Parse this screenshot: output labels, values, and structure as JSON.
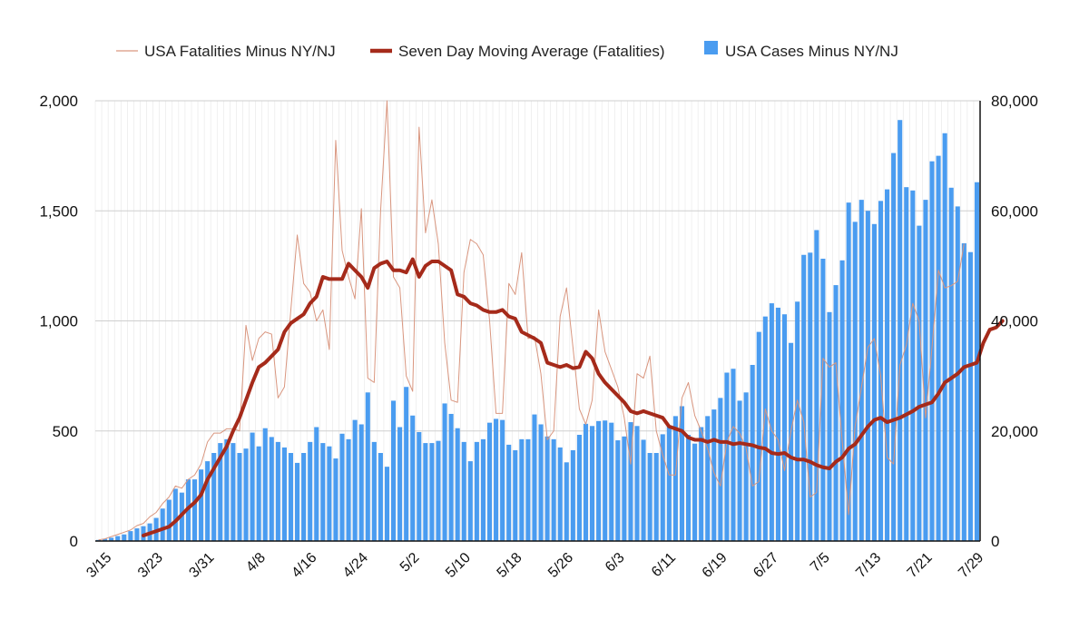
{
  "chart_data": {
    "type": "bar+line",
    "title": "",
    "start_date": "3/15",
    "end_date": "7/29",
    "x_tick_labels": [
      "3/15",
      "3/23",
      "3/31",
      "4/8",
      "4/16",
      "4/24",
      "5/2",
      "5/10",
      "5/18",
      "5/26",
      "6/3",
      "6/11",
      "6/19",
      "6/27",
      "7/5",
      "7/13",
      "7/21",
      "7/29"
    ],
    "x_tick_index": [
      0,
      8,
      16,
      24,
      32,
      40,
      48,
      56,
      64,
      72,
      80,
      88,
      96,
      104,
      112,
      120,
      128,
      136
    ],
    "y_left": {
      "ylim": [
        0,
        2000
      ],
      "ticks": [
        0,
        500,
        1000,
        1500,
        2000
      ],
      "tick_labels": [
        "0",
        "500",
        "1,000",
        "1,500",
        "2,000"
      ]
    },
    "y_right": {
      "ylim": [
        0,
        80000
      ],
      "ticks": [
        0,
        20000,
        40000,
        60000,
        80000
      ],
      "tick_labels": [
        "0",
        "20,000",
        "40,000",
        "60,000",
        "80,000"
      ]
    },
    "legend": [
      {
        "name": "USA Fatalities Minus NY/NJ",
        "color": "#d9967f",
        "kind": "thin-line"
      },
      {
        "name": "Seven Day Moving Average (Fatalities)",
        "color": "#a52a1a",
        "kind": "thick-line"
      },
      {
        "name": "USA Cases Minus NY/NJ",
        "color": "#4a9cf0",
        "kind": "bar"
      }
    ],
    "series": [
      {
        "name": "USA Cases Minus NY/NJ",
        "axis": "right",
        "values": [
          200,
          400,
          600,
          900,
          1200,
          1800,
          2300,
          2700,
          3200,
          4200,
          5900,
          7500,
          9500,
          8800,
          11200,
          11200,
          13000,
          14500,
          16000,
          17800,
          18500,
          17800,
          16000,
          16800,
          19700,
          17200,
          20500,
          18900,
          18000,
          17000,
          16000,
          14200,
          16000,
          18000,
          20700,
          17800,
          17200,
          15000,
          19500,
          18500,
          22000,
          21200,
          27000,
          18000,
          16000,
          13500,
          25500,
          20700,
          28000,
          22800,
          19800,
          17800,
          17800,
          18200,
          25000,
          23100,
          20500,
          18000,
          14500,
          18000,
          18500,
          21500,
          22200,
          22000,
          17500,
          16500,
          18500,
          18500,
          23000,
          21200,
          19000,
          18500,
          17000,
          14300,
          16500,
          19300,
          21300,
          20900,
          21800,
          21900,
          21500,
          18300,
          19000,
          21600,
          20900,
          18400,
          16000,
          16000,
          19400,
          21000,
          22700,
          24500,
          19300,
          17700,
          20700,
          22700,
          23900,
          26000,
          30600,
          31300,
          25500,
          27000,
          32000,
          38000,
          40800,
          43200,
          42400,
          41200,
          36000,
          43500,
          52000,
          52400,
          56500,
          51300,
          41600,
          46500,
          51000,
          61500,
          58000,
          62000,
          60000,
          57600,
          61800,
          63900,
          70500,
          76500,
          64300,
          63700,
          57300,
          62000,
          69000,
          70000,
          74100,
          64200,
          60800,
          54100,
          52500,
          65200
        ]
      },
      {
        "name": "USA Fatalities Minus NY/NJ",
        "axis": "left",
        "values": [
          5,
          10,
          20,
          30,
          40,
          50,
          70,
          80,
          110,
          130,
          170,
          200,
          250,
          240,
          280,
          300,
          350,
          450,
          490,
          490,
          510,
          510,
          500,
          980,
          820,
          920,
          950,
          940,
          650,
          700,
          1050,
          1390,
          1170,
          1130,
          1000,
          1050,
          870,
          1820,
          1320,
          1200,
          1100,
          1510,
          740,
          720,
          1500,
          2000,
          1200,
          1150,
          750,
          680,
          1880,
          1400,
          1550,
          1350,
          900,
          640,
          630,
          1220,
          1370,
          1350,
          1300,
          1000,
          580,
          580,
          1170,
          1120,
          1310,
          920,
          930,
          760,
          460,
          500,
          1020,
          1150,
          880,
          600,
          530,
          640,
          1050,
          860,
          780,
          700,
          560,
          350,
          760,
          740,
          840,
          500,
          390,
          300,
          300,
          650,
          720,
          570,
          500,
          420,
          310,
          250,
          450,
          520,
          490,
          420,
          250,
          270,
          600,
          500,
          460,
          320,
          500,
          640,
          540,
          200,
          220,
          830,
          790,
          810,
          450,
          120,
          520,
          700,
          880,
          920,
          750,
          380,
          350,
          800,
          890,
          1080,
          1000,
          560,
          880,
          1230,
          1150,
          1160,
          1180,
          1350
        ]
      },
      {
        "name": "Seven Day Moving Average (Fatalities)",
        "axis": "left",
        "values": null,
        "start_index": 7,
        "values_from_start": [
          25,
          35,
          45,
          55,
          65,
          90,
          120,
          150,
          175,
          210,
          280,
          330,
          380,
          430,
          500,
          560,
          640,
          720,
          790,
          810,
          840,
          870,
          950,
          990,
          1010,
          1030,
          1080,
          1110,
          1200,
          1190,
          1190,
          1190,
          1260,
          1230,
          1200,
          1150,
          1240,
          1260,
          1270,
          1230,
          1230,
          1220,
          1280,
          1200,
          1250,
          1270,
          1270,
          1250,
          1230,
          1120,
          1110,
          1080,
          1070,
          1050,
          1040,
          1040,
          1050,
          1020,
          1010,
          950,
          935,
          920,
          900,
          810,
          800,
          790,
          800,
          785,
          790,
          860,
          830,
          760,
          720,
          690,
          660,
          630,
          590,
          580,
          590,
          580,
          570,
          560,
          520,
          510,
          500,
          470,
          460,
          460,
          450,
          460,
          450,
          450,
          440,
          445,
          440,
          435,
          425,
          420,
          400,
          395,
          400,
          380,
          370,
          370,
          360,
          345,
          335,
          330,
          360,
          380,
          420,
          440,
          480,
          520,
          550,
          560,
          540,
          550,
          560,
          575,
          590,
          610,
          620,
          630,
          670,
          720,
          740,
          760,
          790,
          800,
          810,
          900,
          960,
          970,
          1000
        ]
      }
    ]
  }
}
